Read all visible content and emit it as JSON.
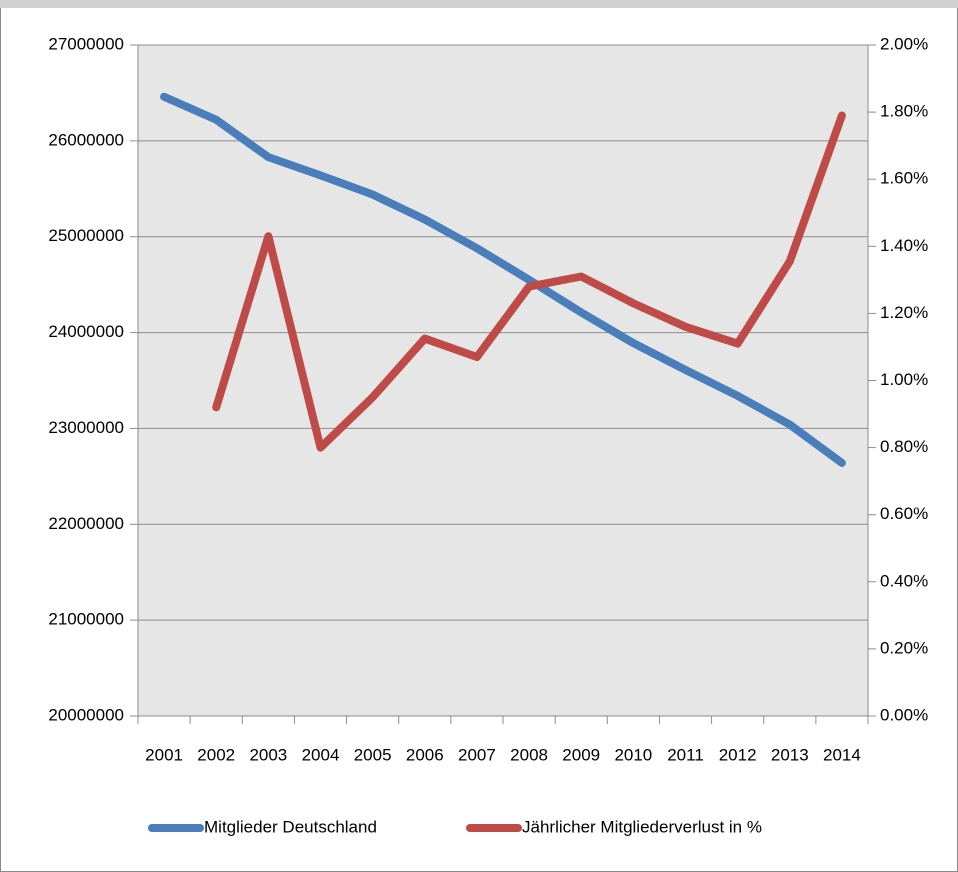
{
  "chart_data": {
    "type": "line",
    "categories": [
      "2001",
      "2002",
      "2003",
      "2004",
      "2005",
      "2006",
      "2007",
      "2008",
      "2009",
      "2010",
      "2011",
      "2012",
      "2013",
      "2014"
    ],
    "series": [
      {
        "name": "Mitglieder Deutschland",
        "color": "#4a7ebb",
        "values": [
          26460000,
          26220000,
          25830000,
          25640000,
          25440000,
          25180000,
          24880000,
          24550000,
          24210000,
          23890000,
          23610000,
          23340000,
          23040000,
          22640000
        ]
      },
      {
        "name": "Jährlicher Mitgliederverlust in %",
        "color": "#be4b48",
        "axis": "y2",
        "values": [
          null,
          0.92,
          1.43,
          0.8,
          0.95,
          1.125,
          1.07,
          1.28,
          1.31,
          1.23,
          1.16,
          1.11,
          1.355,
          1.79
        ]
      }
    ],
    "ylim": [
      20000000,
      27000000
    ],
    "yticks": [
      20000000,
      21000000,
      22000000,
      23000000,
      24000000,
      25000000,
      26000000,
      27000000
    ],
    "y2lim": [
      0,
      2
    ],
    "y2ticks": [
      {
        "value": 0,
        "label": "0.00%"
      },
      {
        "value": 0.2,
        "label": "0.20%"
      },
      {
        "value": 0.4,
        "label": "0.40%"
      },
      {
        "value": 0.6,
        "label": "0.60%"
      },
      {
        "value": 0.8,
        "label": "0.80%"
      },
      {
        "value": 1,
        "label": "1.00%"
      },
      {
        "value": 1.2,
        "label": "1.20%"
      },
      {
        "value": 1.4,
        "label": "1.40%"
      },
      {
        "value": 1.6,
        "label": "1.60%"
      },
      {
        "value": 1.8,
        "label": "1.80%"
      },
      {
        "value": 2,
        "label": "2.00%"
      }
    ],
    "grid": true,
    "legend": "bottom"
  }
}
